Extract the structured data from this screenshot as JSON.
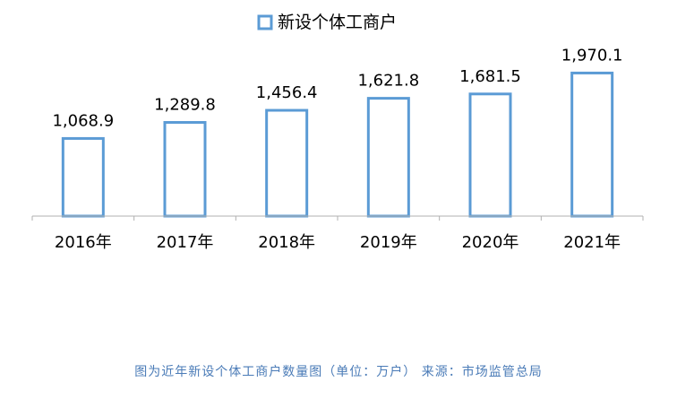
{
  "chart_data": {
    "type": "bar",
    "title": "",
    "legend": {
      "label": "新设个体工商户",
      "position": "top"
    },
    "categories": [
      "2016年",
      "2017年",
      "2018年",
      "2019年",
      "2020年",
      "2021年"
    ],
    "series": [
      {
        "name": "新设个体工商户",
        "values": [
          1068.9,
          1289.8,
          1456.4,
          1621.8,
          1681.5,
          1970.1
        ]
      }
    ],
    "data_labels": [
      "1,068.9",
      "1,289.8",
      "1,456.4",
      "1,621.8",
      "1,681.5",
      "1,970.1"
    ],
    "ylim": [
      0,
      2000
    ],
    "grid": false,
    "colors": {
      "bar_outline": "#5b9bd5",
      "axis": "#b0b0b0",
      "text": "#000000"
    }
  },
  "caption": "图为近年新设个体工商户数量图（单位：万户） 来源：市场监管总局"
}
